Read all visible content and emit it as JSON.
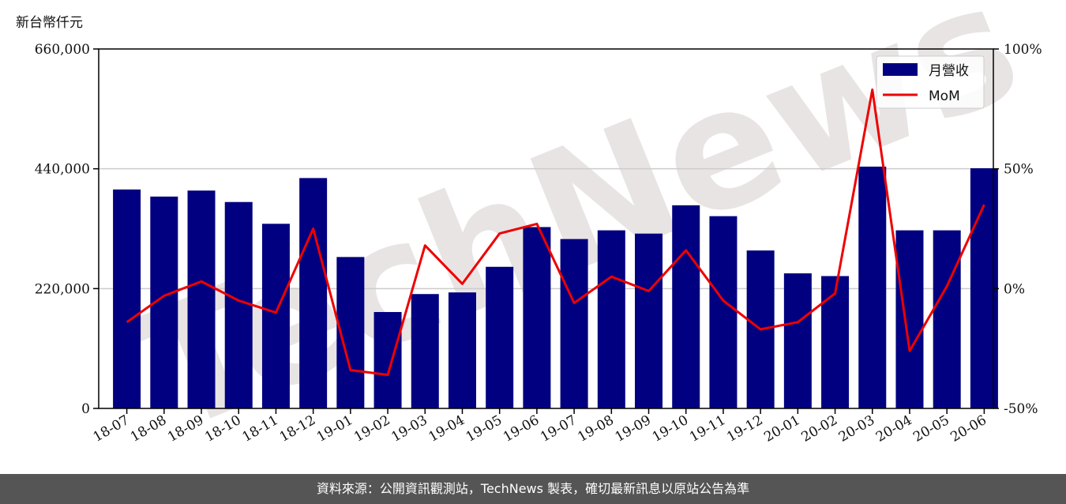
{
  "unit_label": "新台幣仟元",
  "footer_text": "資料來源：公開資訊觀測站，TechNews 製表，確切最新訊息以原站公告為準",
  "watermark_text": "TechNews",
  "colors": {
    "bar": "#000080",
    "line": "#ee0000",
    "footer_bg": "#555555",
    "grid": "#cccccc"
  },
  "chart_data": {
    "type": "bar",
    "categories": [
      "18-07",
      "18-08",
      "18-09",
      "18-10",
      "18-11",
      "18-12",
      "19-01",
      "19-02",
      "19-03",
      "19-04",
      "19-05",
      "19-06",
      "19-07",
      "19-08",
      "19-09",
      "19-10",
      "19-11",
      "19-12",
      "20-01",
      "20-02",
      "20-03",
      "20-04",
      "20-05",
      "20-06"
    ],
    "series": [
      {
        "name": "月營收",
        "type": "bar",
        "axis": "left",
        "values": [
          402000,
          389000,
          400000,
          379000,
          339000,
          423000,
          278000,
          177000,
          210000,
          213000,
          260000,
          333000,
          311000,
          327000,
          321000,
          373000,
          353000,
          290000,
          248000,
          243000,
          444000,
          327000,
          327000,
          441000
        ]
      },
      {
        "name": "MoM",
        "type": "line",
        "axis": "right",
        "values": [
          -14,
          -3,
          3,
          -5,
          -10,
          25,
          -34,
          -36,
          18,
          2,
          23,
          27,
          -6,
          5,
          -1,
          16,
          -5,
          -17,
          -14,
          -2,
          83,
          -26,
          1,
          35
        ]
      }
    ],
    "y_left": {
      "ylim": [
        0,
        660000
      ],
      "ticks": [
        "0",
        "220,000",
        "440,000",
        "660,000"
      ],
      "tick_values": [
        0,
        220000,
        440000,
        660000
      ]
    },
    "y_right": {
      "ylim": [
        -50,
        100
      ],
      "ticks": [
        "-50%",
        "0%",
        "50%",
        "100%"
      ],
      "tick_values": [
        -50,
        0,
        50,
        100
      ]
    },
    "grid": true,
    "legend": {
      "placement": "top-right",
      "entries": [
        "月營收",
        "MoM"
      ]
    }
  }
}
